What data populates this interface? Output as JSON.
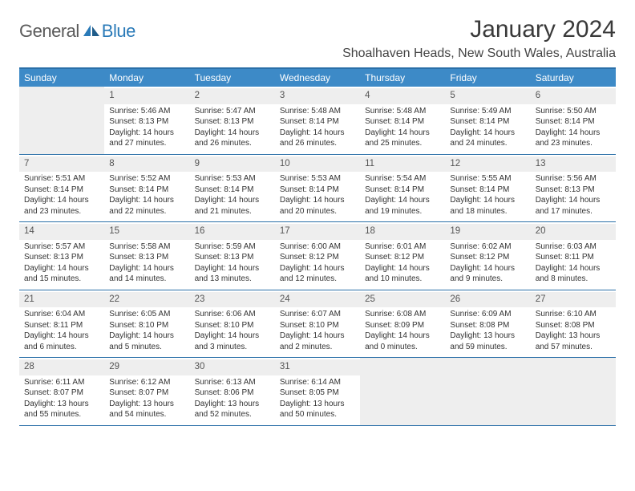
{
  "logo": {
    "text1": "General",
    "text2": "Blue"
  },
  "title": "January 2024",
  "location": "Shoalhaven Heads, New South Wales, Australia",
  "colors": {
    "header_bg": "#3d8ac7",
    "header_text": "#ffffff",
    "border": "#2a6fa8",
    "daynum_bg": "#eeeeee",
    "text": "#333333",
    "logo_gray": "#5a5a5a",
    "logo_blue": "#2a7ab8"
  },
  "weekdays": [
    "Sunday",
    "Monday",
    "Tuesday",
    "Wednesday",
    "Thursday",
    "Friday",
    "Saturday"
  ],
  "weeks": [
    [
      null,
      {
        "n": "1",
        "sr": "5:46 AM",
        "ss": "8:13 PM",
        "dl": "14 hours and 27 minutes."
      },
      {
        "n": "2",
        "sr": "5:47 AM",
        "ss": "8:13 PM",
        "dl": "14 hours and 26 minutes."
      },
      {
        "n": "3",
        "sr": "5:48 AM",
        "ss": "8:14 PM",
        "dl": "14 hours and 26 minutes."
      },
      {
        "n": "4",
        "sr": "5:48 AM",
        "ss": "8:14 PM",
        "dl": "14 hours and 25 minutes."
      },
      {
        "n": "5",
        "sr": "5:49 AM",
        "ss": "8:14 PM",
        "dl": "14 hours and 24 minutes."
      },
      {
        "n": "6",
        "sr": "5:50 AM",
        "ss": "8:14 PM",
        "dl": "14 hours and 23 minutes."
      }
    ],
    [
      {
        "n": "7",
        "sr": "5:51 AM",
        "ss": "8:14 PM",
        "dl": "14 hours and 23 minutes."
      },
      {
        "n": "8",
        "sr": "5:52 AM",
        "ss": "8:14 PM",
        "dl": "14 hours and 22 minutes."
      },
      {
        "n": "9",
        "sr": "5:53 AM",
        "ss": "8:14 PM",
        "dl": "14 hours and 21 minutes."
      },
      {
        "n": "10",
        "sr": "5:53 AM",
        "ss": "8:14 PM",
        "dl": "14 hours and 20 minutes."
      },
      {
        "n": "11",
        "sr": "5:54 AM",
        "ss": "8:14 PM",
        "dl": "14 hours and 19 minutes."
      },
      {
        "n": "12",
        "sr": "5:55 AM",
        "ss": "8:14 PM",
        "dl": "14 hours and 18 minutes."
      },
      {
        "n": "13",
        "sr": "5:56 AM",
        "ss": "8:13 PM",
        "dl": "14 hours and 17 minutes."
      }
    ],
    [
      {
        "n": "14",
        "sr": "5:57 AM",
        "ss": "8:13 PM",
        "dl": "14 hours and 15 minutes."
      },
      {
        "n": "15",
        "sr": "5:58 AM",
        "ss": "8:13 PM",
        "dl": "14 hours and 14 minutes."
      },
      {
        "n": "16",
        "sr": "5:59 AM",
        "ss": "8:13 PM",
        "dl": "14 hours and 13 minutes."
      },
      {
        "n": "17",
        "sr": "6:00 AM",
        "ss": "8:12 PM",
        "dl": "14 hours and 12 minutes."
      },
      {
        "n": "18",
        "sr": "6:01 AM",
        "ss": "8:12 PM",
        "dl": "14 hours and 10 minutes."
      },
      {
        "n": "19",
        "sr": "6:02 AM",
        "ss": "8:12 PM",
        "dl": "14 hours and 9 minutes."
      },
      {
        "n": "20",
        "sr": "6:03 AM",
        "ss": "8:11 PM",
        "dl": "14 hours and 8 minutes."
      }
    ],
    [
      {
        "n": "21",
        "sr": "6:04 AM",
        "ss": "8:11 PM",
        "dl": "14 hours and 6 minutes."
      },
      {
        "n": "22",
        "sr": "6:05 AM",
        "ss": "8:10 PM",
        "dl": "14 hours and 5 minutes."
      },
      {
        "n": "23",
        "sr": "6:06 AM",
        "ss": "8:10 PM",
        "dl": "14 hours and 3 minutes."
      },
      {
        "n": "24",
        "sr": "6:07 AM",
        "ss": "8:10 PM",
        "dl": "14 hours and 2 minutes."
      },
      {
        "n": "25",
        "sr": "6:08 AM",
        "ss": "8:09 PM",
        "dl": "14 hours and 0 minutes."
      },
      {
        "n": "26",
        "sr": "6:09 AM",
        "ss": "8:08 PM",
        "dl": "13 hours and 59 minutes."
      },
      {
        "n": "27",
        "sr": "6:10 AM",
        "ss": "8:08 PM",
        "dl": "13 hours and 57 minutes."
      }
    ],
    [
      {
        "n": "28",
        "sr": "6:11 AM",
        "ss": "8:07 PM",
        "dl": "13 hours and 55 minutes."
      },
      {
        "n": "29",
        "sr": "6:12 AM",
        "ss": "8:07 PM",
        "dl": "13 hours and 54 minutes."
      },
      {
        "n": "30",
        "sr": "6:13 AM",
        "ss": "8:06 PM",
        "dl": "13 hours and 52 minutes."
      },
      {
        "n": "31",
        "sr": "6:14 AM",
        "ss": "8:05 PM",
        "dl": "13 hours and 50 minutes."
      },
      null,
      null,
      null
    ]
  ],
  "labels": {
    "sunrise": "Sunrise: ",
    "sunset": "Sunset: ",
    "daylight": "Daylight: "
  }
}
